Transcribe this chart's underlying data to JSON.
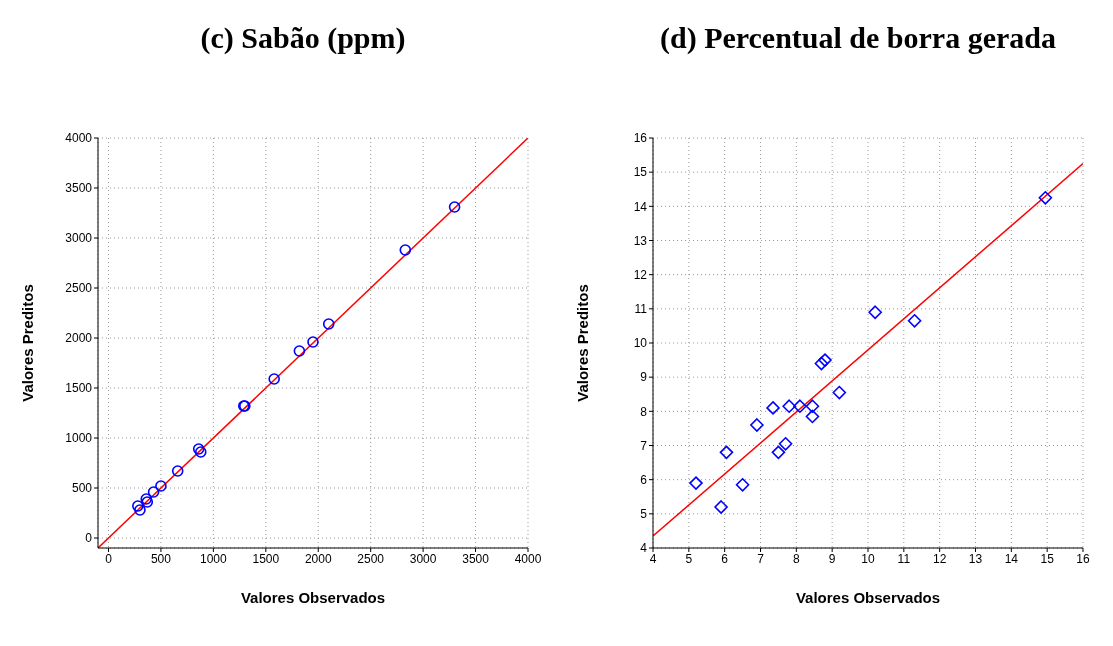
{
  "chart_data": [
    {
      "type": "scatter",
      "title": "(c) Sabão (ppm)",
      "xlabel": "Valores Observados",
      "ylabel": "Valores Preditos",
      "xlim": [
        -100,
        4000
      ],
      "ylim": [
        -100,
        4000
      ],
      "xticks": [
        0,
        500,
        1000,
        1500,
        2000,
        2500,
        3000,
        3500,
        4000
      ],
      "yticks": [
        0,
        500,
        1000,
        1500,
        2000,
        2500,
        3000,
        3500,
        4000
      ],
      "grid": true,
      "marker": "circle",
      "series": [
        {
          "color": "#0000ff",
          "x": [
            3300,
            2830,
            2100,
            1950,
            1820,
            1580,
            1290,
            1300,
            860,
            880,
            660,
            500,
            430,
            360,
            370,
            280,
            300
          ],
          "values": [
            3310,
            2880,
            2140,
            1960,
            1870,
            1590,
            1320,
            1320,
            890,
            860,
            670,
            520,
            460,
            390,
            360,
            320,
            280
          ]
        },
        {
          "type": "line",
          "color": "#ff0000",
          "marker": "none",
          "line_style": "solid",
          "x": [
            -100,
            4000
          ],
          "values": [
            -100,
            4000
          ]
        }
      ]
    },
    {
      "type": "scatter",
      "title": "(d) Percentual de borra gerada",
      "xlabel": "Valores Observados",
      "ylabel": "Valores Preditos",
      "xlim": [
        4,
        16
      ],
      "ylim": [
        4,
        16
      ],
      "xticks": [
        4,
        5,
        6,
        7,
        8,
        9,
        10,
        11,
        12,
        13,
        14,
        15,
        16
      ],
      "yticks": [
        4,
        5,
        6,
        7,
        8,
        9,
        10,
        11,
        12,
        13,
        14,
        15,
        16
      ],
      "grid": true,
      "marker": "diamond",
      "series": [
        {
          "color": "#0000ff",
          "x": [
            14.95,
            10.2,
            11.3,
            8.8,
            8.7,
            9.2,
            7.35,
            7.8,
            8.1,
            8.45,
            8.45,
            6.9,
            7.7,
            7.5,
            6.05,
            5.2,
            6.5,
            5.9
          ],
          "values": [
            14.25,
            10.9,
            10.65,
            9.5,
            9.4,
            8.55,
            8.1,
            8.15,
            8.15,
            8.15,
            7.85,
            7.6,
            7.05,
            6.8,
            6.8,
            5.9,
            5.85,
            5.2
          ]
        },
        {
          "type": "line",
          "color": "#ff0000",
          "marker": "none",
          "line_style": "solid",
          "x": [
            4,
            16
          ],
          "values": [
            4.35,
            15.25
          ]
        }
      ]
    }
  ]
}
